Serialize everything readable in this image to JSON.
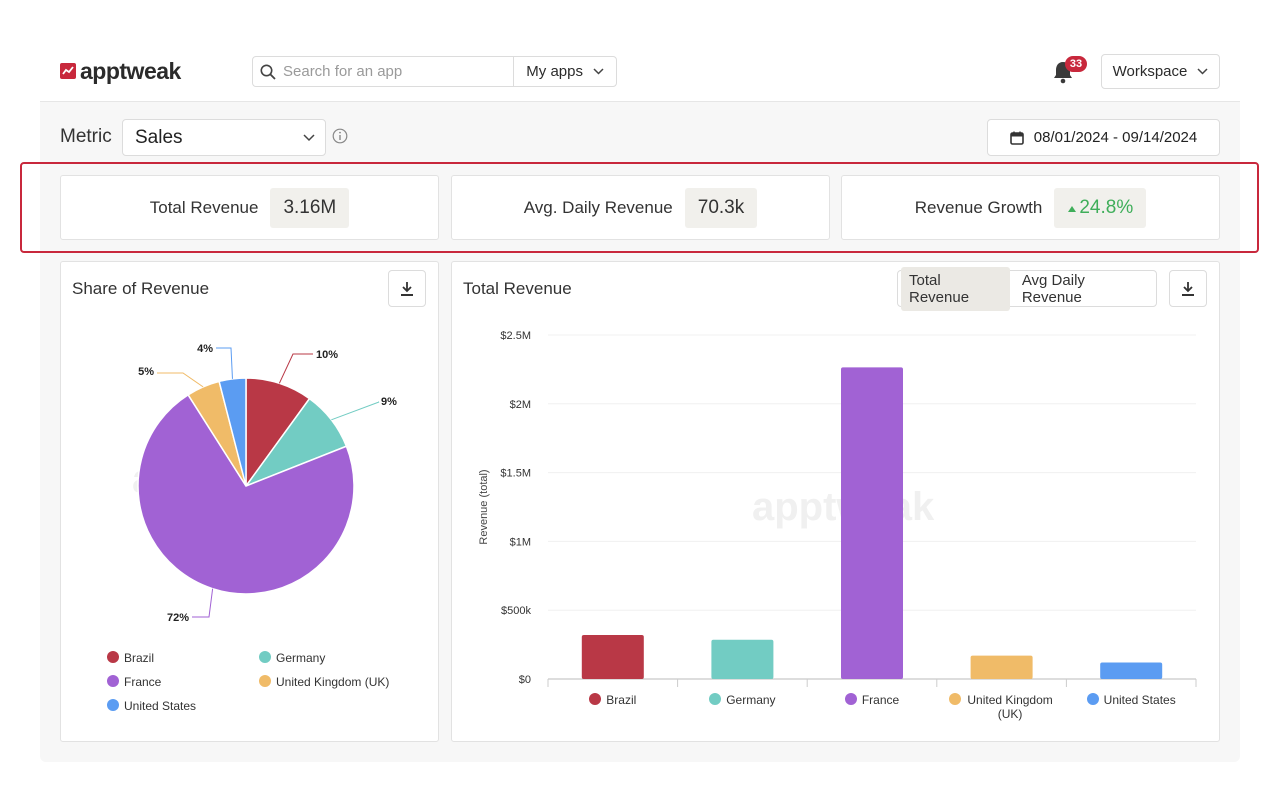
{
  "brand": {
    "name": "apptweak",
    "accent": "#c8283c"
  },
  "header": {
    "search_placeholder": "Search for an app",
    "myapps_label": "My apps",
    "notifications_count": "33",
    "workspace_label": "Workspace"
  },
  "filters": {
    "metric_label": "Metric",
    "metric_value": "Sales",
    "date_range": "08/01/2024 - 09/14/2024"
  },
  "kpis": [
    {
      "label": "Total Revenue",
      "value": "3.16M"
    },
    {
      "label": "Avg. Daily Revenue",
      "value": "70.3k"
    },
    {
      "label": "Revenue Growth",
      "value": "24.8%",
      "trend": "up",
      "color": "#3fae5a"
    }
  ],
  "share_panel": {
    "title": "Share of Revenue",
    "watermark": "apptweak"
  },
  "revenue_panel": {
    "title": "Total Revenue",
    "toggle": [
      "Total Revenue",
      "Avg Daily Revenue"
    ],
    "toggle_active": 0,
    "watermark": "apptweak"
  },
  "chart_data": [
    {
      "type": "pie",
      "title": "Share of Revenue",
      "categories": [
        "Brazil",
        "Germany",
        "France",
        "United Kingdom (UK)",
        "United States"
      ],
      "values": [
        10,
        9,
        72,
        5,
        4
      ],
      "labels": [
        "10%",
        "9%",
        "72%",
        "5%",
        "4%"
      ],
      "colors": [
        "#b93846",
        "#72ccc3",
        "#a162d4",
        "#f0bb68",
        "#5b9cf2"
      ],
      "legend": "bottom"
    },
    {
      "type": "bar",
      "title": "Total Revenue",
      "categories": [
        "Brazil",
        "Germany",
        "France",
        "United Kingdom (UK)",
        "United States"
      ],
      "values": [
        320000,
        285000,
        2265000,
        170000,
        120000
      ],
      "colors": [
        "#b93846",
        "#72ccc3",
        "#a162d4",
        "#f0bb68",
        "#5b9cf2"
      ],
      "ylabel": "Revenue (total)",
      "ylim": [
        0,
        2500000
      ],
      "yticks": [
        "$0",
        "$500k",
        "$1M",
        "$1.5M",
        "$2M",
        "$2.5M"
      ],
      "legend": "bottom",
      "grid": true
    }
  ]
}
